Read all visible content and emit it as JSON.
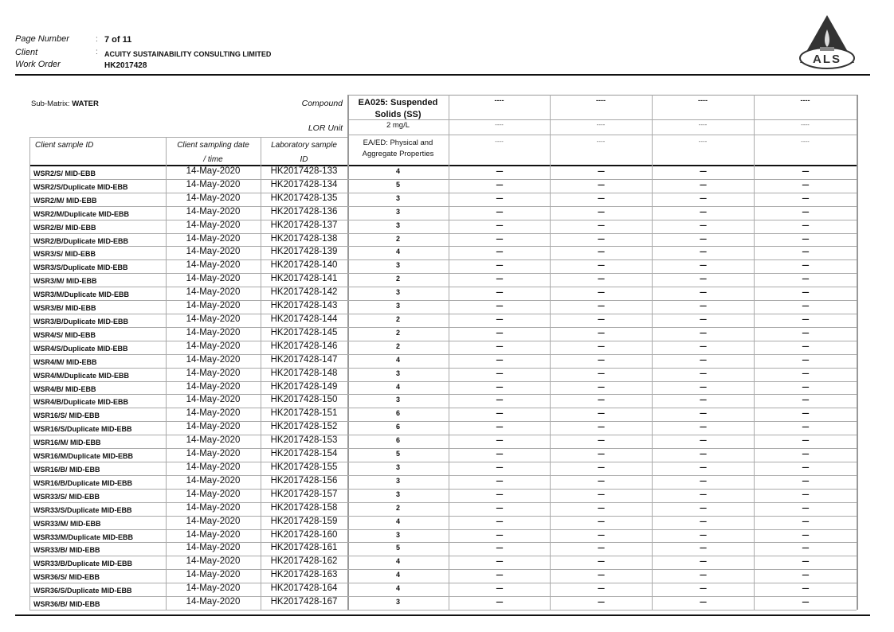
{
  "header": {
    "page_number_label": "Page Number",
    "page_number": "7 of 11",
    "client_label": "Client",
    "client": "ACUITY SUSTAINABILITY CONSULTING LIMITED",
    "work_order_label": "Work Order",
    "work_order": "HK2017428",
    "colon": ":",
    "logo_text": "ALS"
  },
  "table": {
    "sub_matrix_label": "Sub-Matrix:",
    "sub_matrix": "WATER",
    "compound_label": "Compound",
    "lor_unit_label": "LOR Unit",
    "col_client_id": "Client sample ID",
    "col_date_line1": "Client sampling date",
    "col_date_line2": "/ time",
    "col_lab_line1": "Laboratory sample",
    "col_lab_line2": "ID",
    "compound": "EA025: Suspended Solids (SS)",
    "lor_unit": "2 mg/L",
    "method_group": "EA/ED: Physical and Aggregate Properties",
    "empty_placeholder": "----",
    "empty_result": "----",
    "rows": [
      {
        "id": "WSR2/S/ MID-EBB",
        "date": "14-May-2020",
        "lab": "HK2017428-133",
        "ss": "4"
      },
      {
        "id": "WSR2/S/Duplicate MID-EBB",
        "date": "14-May-2020",
        "lab": "HK2017428-134",
        "ss": "5"
      },
      {
        "id": "WSR2/M/ MID-EBB",
        "date": "14-May-2020",
        "lab": "HK2017428-135",
        "ss": "3"
      },
      {
        "id": "WSR2/M/Duplicate MID-EBB",
        "date": "14-May-2020",
        "lab": "HK2017428-136",
        "ss": "3"
      },
      {
        "id": "WSR2/B/ MID-EBB",
        "date": "14-May-2020",
        "lab": "HK2017428-137",
        "ss": "3"
      },
      {
        "id": "WSR2/B/Duplicate MID-EBB",
        "date": "14-May-2020",
        "lab": "HK2017428-138",
        "ss": "2"
      },
      {
        "id": "WSR3/S/ MID-EBB",
        "date": "14-May-2020",
        "lab": "HK2017428-139",
        "ss": "4"
      },
      {
        "id": "WSR3/S/Duplicate MID-EBB",
        "date": "14-May-2020",
        "lab": "HK2017428-140",
        "ss": "3"
      },
      {
        "id": "WSR3/M/ MID-EBB",
        "date": "14-May-2020",
        "lab": "HK2017428-141",
        "ss": "2"
      },
      {
        "id": "WSR3/M/Duplicate MID-EBB",
        "date": "14-May-2020",
        "lab": "HK2017428-142",
        "ss": "3"
      },
      {
        "id": "WSR3/B/ MID-EBB",
        "date": "14-May-2020",
        "lab": "HK2017428-143",
        "ss": "3"
      },
      {
        "id": "WSR3/B/Duplicate MID-EBB",
        "date": "14-May-2020",
        "lab": "HK2017428-144",
        "ss": "2"
      },
      {
        "id": "WSR4/S/ MID-EBB",
        "date": "14-May-2020",
        "lab": "HK2017428-145",
        "ss": "2"
      },
      {
        "id": "WSR4/S/Duplicate MID-EBB",
        "date": "14-May-2020",
        "lab": "HK2017428-146",
        "ss": "2"
      },
      {
        "id": "WSR4/M/ MID-EBB",
        "date": "14-May-2020",
        "lab": "HK2017428-147",
        "ss": "4"
      },
      {
        "id": "WSR4/M/Duplicate MID-EBB",
        "date": "14-May-2020",
        "lab": "HK2017428-148",
        "ss": "3"
      },
      {
        "id": "WSR4/B/ MID-EBB",
        "date": "14-May-2020",
        "lab": "HK2017428-149",
        "ss": "4"
      },
      {
        "id": "WSR4/B/Duplicate MID-EBB",
        "date": "14-May-2020",
        "lab": "HK2017428-150",
        "ss": "3"
      },
      {
        "id": "WSR16/S/ MID-EBB",
        "date": "14-May-2020",
        "lab": "HK2017428-151",
        "ss": "6"
      },
      {
        "id": "WSR16/S/Duplicate MID-EBB",
        "date": "14-May-2020",
        "lab": "HK2017428-152",
        "ss": "6"
      },
      {
        "id": "WSR16/M/ MID-EBB",
        "date": "14-May-2020",
        "lab": "HK2017428-153",
        "ss": "6"
      },
      {
        "id": "WSR16/M/Duplicate MID-EBB",
        "date": "14-May-2020",
        "lab": "HK2017428-154",
        "ss": "5"
      },
      {
        "id": "WSR16/B/ MID-EBB",
        "date": "14-May-2020",
        "lab": "HK2017428-155",
        "ss": "3"
      },
      {
        "id": "WSR16/B/Duplicate MID-EBB",
        "date": "14-May-2020",
        "lab": "HK2017428-156",
        "ss": "3"
      },
      {
        "id": "WSR33/S/ MID-EBB",
        "date": "14-May-2020",
        "lab": "HK2017428-157",
        "ss": "3"
      },
      {
        "id": "WSR33/S/Duplicate MID-EBB",
        "date": "14-May-2020",
        "lab": "HK2017428-158",
        "ss": "2"
      },
      {
        "id": "WSR33/M/ MID-EBB",
        "date": "14-May-2020",
        "lab": "HK2017428-159",
        "ss": "4"
      },
      {
        "id": "WSR33/M/Duplicate MID-EBB",
        "date": "14-May-2020",
        "lab": "HK2017428-160",
        "ss": "3"
      },
      {
        "id": "WSR33/B/ MID-EBB",
        "date": "14-May-2020",
        "lab": "HK2017428-161",
        "ss": "5"
      },
      {
        "id": "WSR33/B/Duplicate MID-EBB",
        "date": "14-May-2020",
        "lab": "HK2017428-162",
        "ss": "4"
      },
      {
        "id": "WSR36/S/ MID-EBB",
        "date": "14-May-2020",
        "lab": "HK2017428-163",
        "ss": "4"
      },
      {
        "id": "WSR36/S/Duplicate MID-EBB",
        "date": "14-May-2020",
        "lab": "HK2017428-164",
        "ss": "4"
      },
      {
        "id": "WSR36/B/ MID-EBB",
        "date": "14-May-2020",
        "lab": "HK2017428-167",
        "ss": "3"
      }
    ]
  }
}
